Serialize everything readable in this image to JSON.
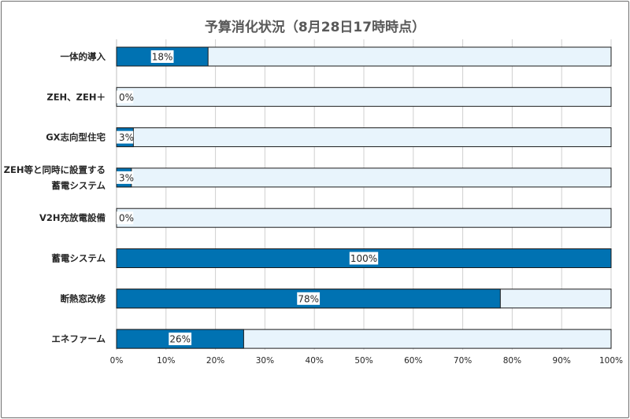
{
  "chart_data": {
    "type": "bar",
    "orientation": "horizontal",
    "title": "予算消化状況（8月28日17時時点）",
    "categories": [
      [
        "一体的導入"
      ],
      [
        "ZEH、ZEH＋"
      ],
      [
        "GX志向型住宅"
      ],
      [
        "ZEH等と同時に設置する",
        "蓄電システム"
      ],
      [
        "V2H充放電設備"
      ],
      [
        "蓄電システム"
      ],
      [
        "断熱窓改修"
      ],
      [
        "エネファーム"
      ]
    ],
    "values": [
      18.5,
      0,
      3.4,
      3,
      0,
      100,
      77.6,
      25.7
    ],
    "data_labels": [
      "18%",
      "0%",
      "3%",
      "3%",
      "0%",
      "100%",
      "78%",
      "26%"
    ],
    "x_ticks": [
      "0%",
      "10%",
      "20%",
      "30%",
      "40%",
      "50%",
      "60%",
      "70%",
      "80%",
      "90%",
      "100%"
    ],
    "xlim": [
      0,
      100
    ],
    "grid": true,
    "colors": {
      "fill": "#0072b2",
      "track": "#e8f4fc",
      "border": "#1a1a1a",
      "grid": "#d0d0d0",
      "frame": "#6e6e6e"
    }
  }
}
